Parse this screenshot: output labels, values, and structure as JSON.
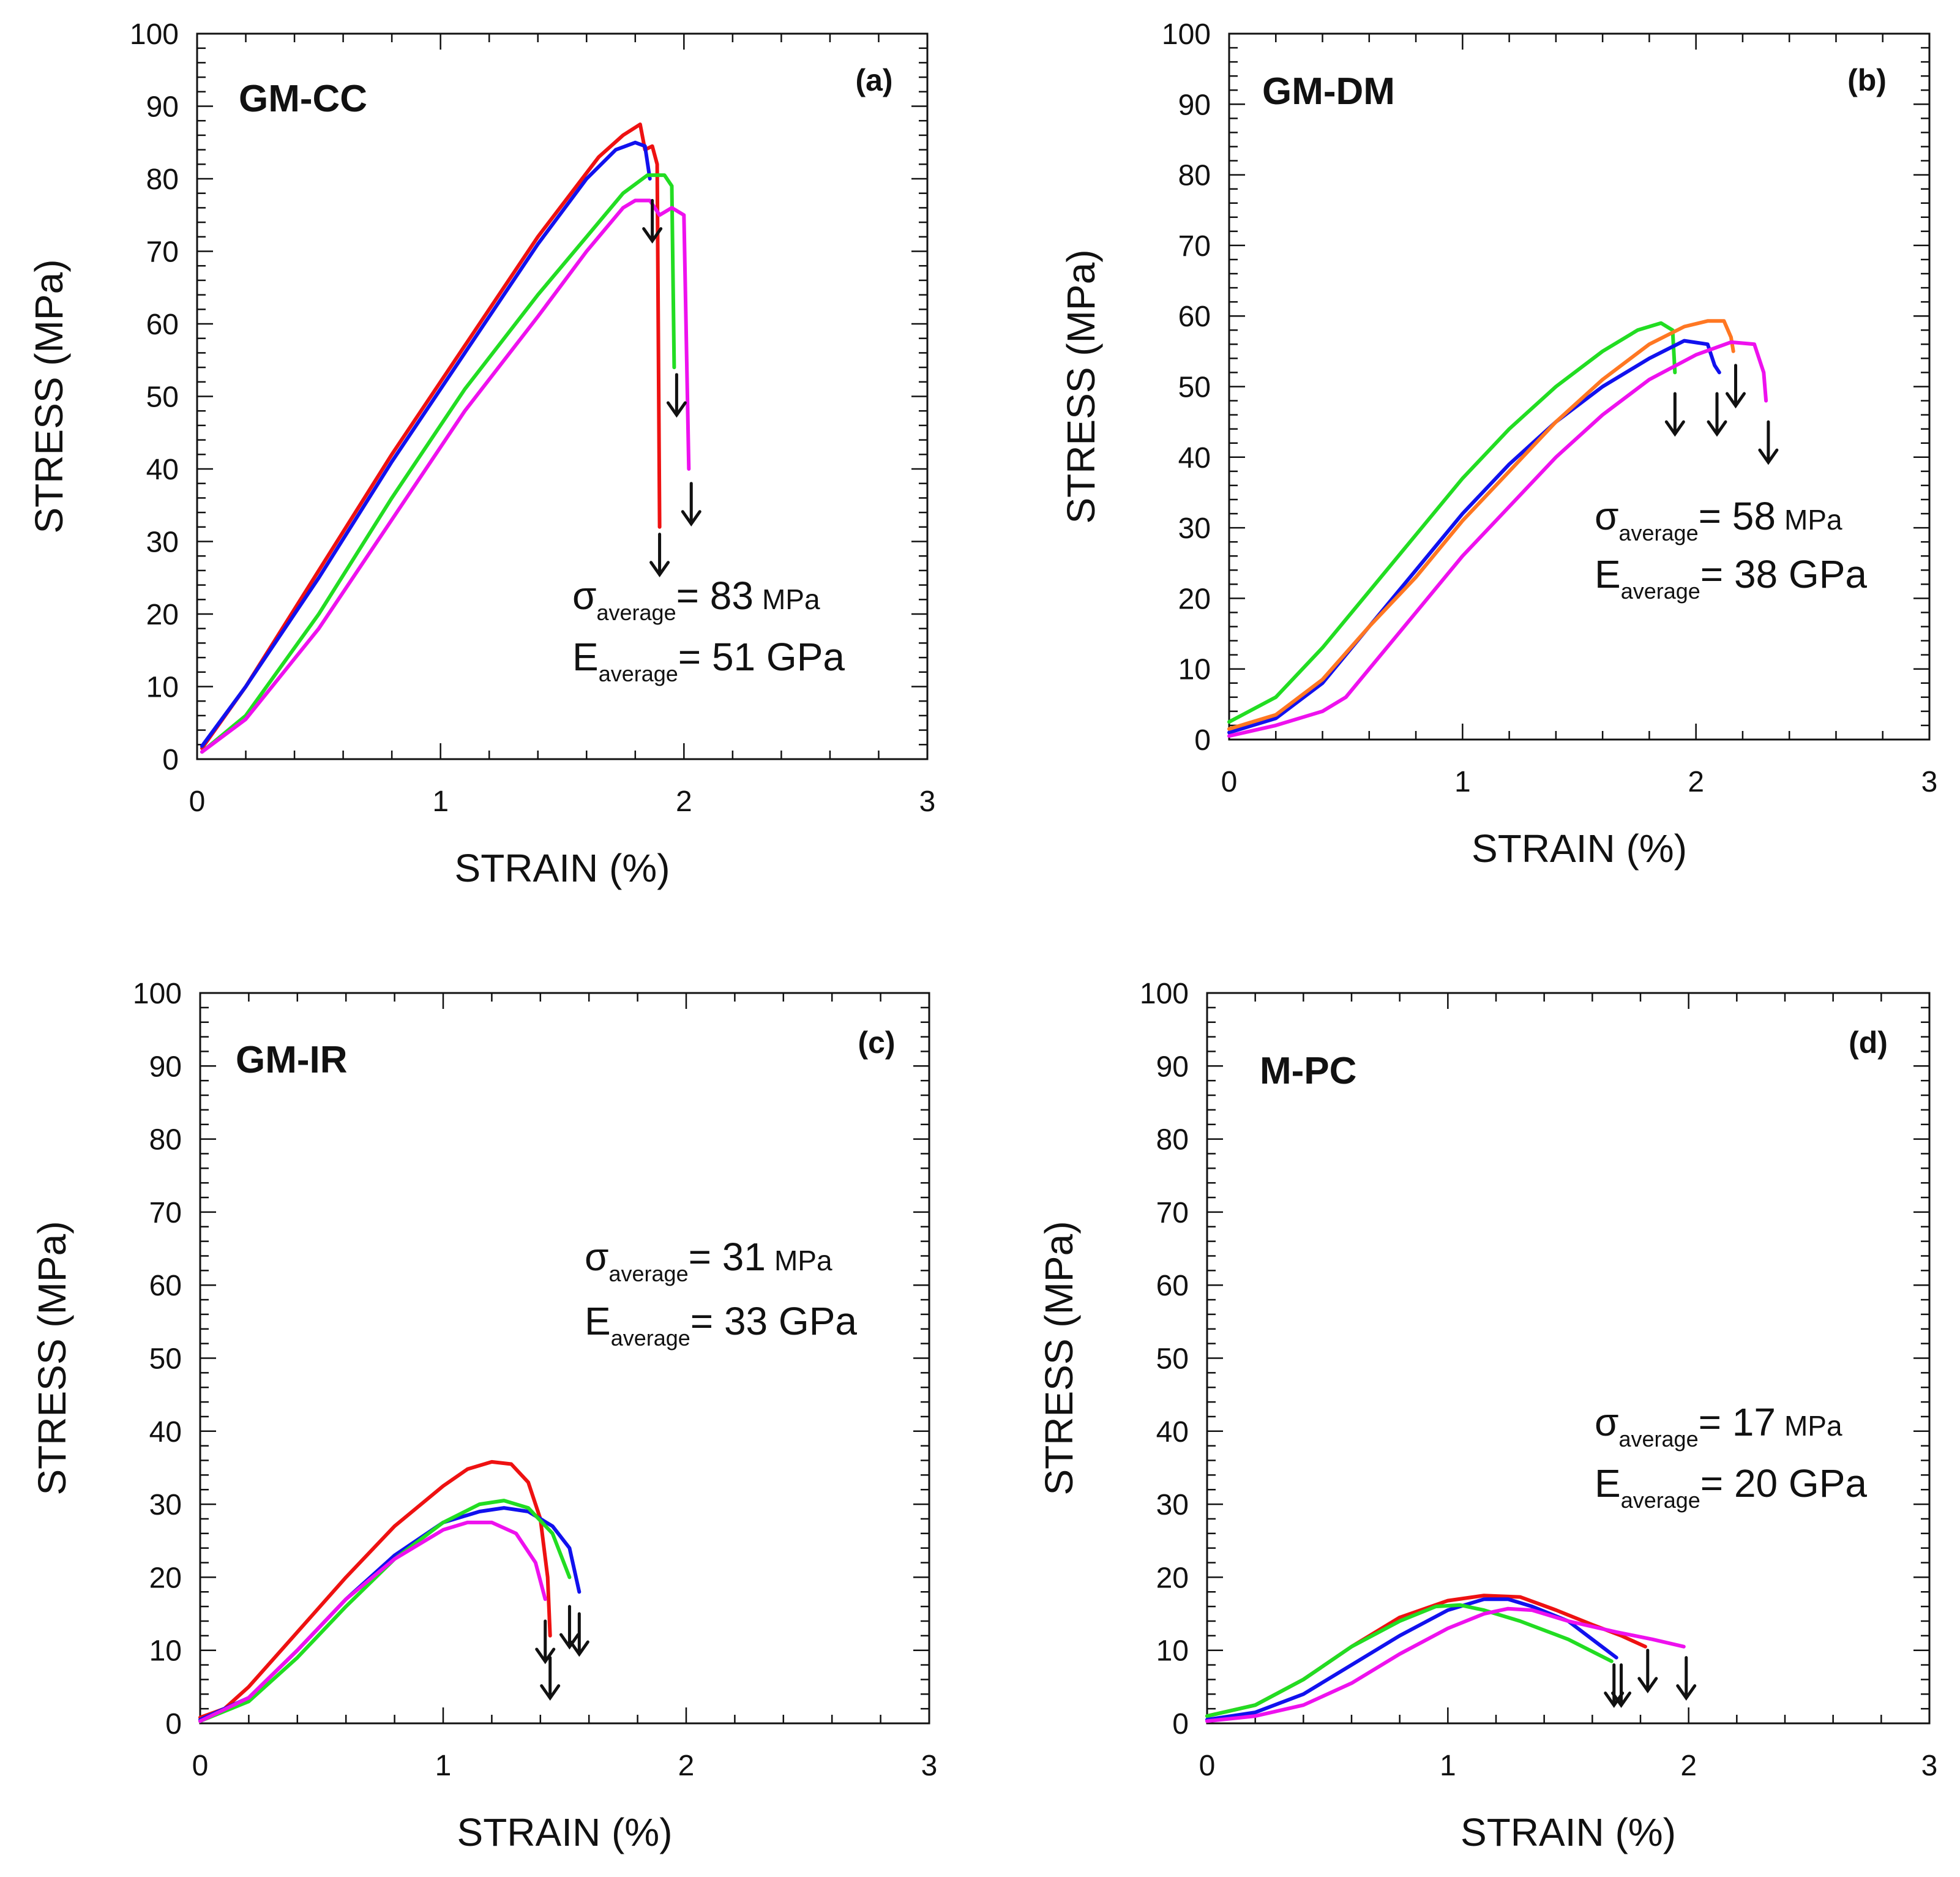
{
  "chart_data": [
    {
      "type": "line",
      "panel_label": "(a)",
      "title": "GM-CC",
      "xlabel": "STRAIN (%)",
      "ylabel": "STRESS (MPa)",
      "xlim": [
        0,
        3
      ],
      "ylim": [
        0,
        100
      ],
      "xticks": [
        "0",
        "1",
        "2",
        "3"
      ],
      "yticks": [
        "0",
        "10",
        "20",
        "30",
        "40",
        "50",
        "60",
        "70",
        "80",
        "90",
        "100"
      ],
      "annotation": {
        "sigma_symbol": "σ",
        "e_symbol": "E",
        "sub": "average",
        "sigma_value": "= 83",
        "sigma_unit": "MPa",
        "e_value": "= 51 GPa"
      },
      "series": [
        {
          "name": "specimen-red",
          "color": "#ee1111",
          "points": [
            [
              0.02,
              1.5
            ],
            [
              0.2,
              10
            ],
            [
              0.5,
              26
            ],
            [
              0.8,
              42
            ],
            [
              1.1,
              57
            ],
            [
              1.4,
              72
            ],
            [
              1.65,
              83
            ],
            [
              1.75,
              86
            ],
            [
              1.82,
              87.5
            ],
            [
              1.84,
              84
            ],
            [
              1.87,
              84.5
            ],
            [
              1.89,
              82
            ],
            [
              1.9,
              32
            ]
          ]
        },
        {
          "name": "specimen-blue",
          "color": "#1111ee",
          "points": [
            [
              0.02,
              1.8
            ],
            [
              0.2,
              10
            ],
            [
              0.5,
              25
            ],
            [
              0.8,
              41
            ],
            [
              1.1,
              56
            ],
            [
              1.4,
              71
            ],
            [
              1.6,
              80
            ],
            [
              1.72,
              84
            ],
            [
              1.8,
              85
            ],
            [
              1.84,
              84.5
            ],
            [
              1.86,
              80
            ]
          ]
        },
        {
          "name": "specimen-green",
          "color": "#22dd22",
          "points": [
            [
              0.02,
              1
            ],
            [
              0.2,
              6
            ],
            [
              0.5,
              20
            ],
            [
              0.8,
              36
            ],
            [
              1.1,
              51
            ],
            [
              1.4,
              64
            ],
            [
              1.6,
              72
            ],
            [
              1.75,
              78
            ],
            [
              1.85,
              80.5
            ],
            [
              1.92,
              80.5
            ],
            [
              1.95,
              79
            ],
            [
              1.96,
              54
            ]
          ]
        },
        {
          "name": "specimen-magenta",
          "color": "#ee11ee",
          "points": [
            [
              0.02,
              1
            ],
            [
              0.2,
              5.5
            ],
            [
              0.5,
              18
            ],
            [
              0.8,
              33
            ],
            [
              1.1,
              48
            ],
            [
              1.4,
              61
            ],
            [
              1.6,
              70
            ],
            [
              1.75,
              76
            ],
            [
              1.8,
              77
            ],
            [
              1.86,
              77
            ],
            [
              1.9,
              75
            ],
            [
              1.95,
              76
            ],
            [
              2.0,
              75
            ],
            [
              2.02,
              40
            ]
          ]
        }
      ],
      "failure_arrows": [
        {
          "x": 1.87,
          "y": 77
        },
        {
          "x": 1.97,
          "y": 53
        },
        {
          "x": 2.03,
          "y": 38
        },
        {
          "x": 1.9,
          "y": 31
        }
      ]
    },
    {
      "type": "line",
      "panel_label": "(b)",
      "title": "GM-DM",
      "xlabel": "STRAIN (%)",
      "ylabel": "STRESS (MPa)",
      "xlim": [
        0,
        3
      ],
      "ylim": [
        0,
        100
      ],
      "xticks": [
        "0",
        "1",
        "2",
        "3"
      ],
      "yticks": [
        "0",
        "10",
        "20",
        "30",
        "40",
        "50",
        "60",
        "70",
        "80",
        "90",
        "100"
      ],
      "annotation": {
        "sigma_symbol": "σ",
        "e_symbol": "E",
        "sub": "average",
        "sigma_value": "= 58",
        "sigma_unit": "MPa",
        "e_value": "= 38 GPa"
      },
      "series": [
        {
          "name": "specimen-green",
          "color": "#22dd22",
          "points": [
            [
              0,
              2.5
            ],
            [
              0.2,
              6
            ],
            [
              0.4,
              13
            ],
            [
              0.6,
              21
            ],
            [
              0.8,
              29
            ],
            [
              1.0,
              37
            ],
            [
              1.2,
              44
            ],
            [
              1.4,
              50
            ],
            [
              1.6,
              55
            ],
            [
              1.75,
              58
            ],
            [
              1.85,
              59
            ],
            [
              1.9,
              58
            ],
            [
              1.91,
              52
            ]
          ]
        },
        {
          "name": "specimen-blue",
          "color": "#1111ee",
          "points": [
            [
              0,
              1
            ],
            [
              0.2,
              3
            ],
            [
              0.4,
              8
            ],
            [
              0.6,
              16
            ],
            [
              0.8,
              24
            ],
            [
              1.0,
              32
            ],
            [
              1.2,
              39
            ],
            [
              1.4,
              45
            ],
            [
              1.6,
              50
            ],
            [
              1.8,
              54
            ],
            [
              1.95,
              56.5
            ],
            [
              2.05,
              56
            ],
            [
              2.08,
              53
            ],
            [
              2.1,
              52
            ]
          ]
        },
        {
          "name": "specimen-orange",
          "color": "#ff7722",
          "points": [
            [
              0,
              1.5
            ],
            [
              0.2,
              3.5
            ],
            [
              0.4,
              8.5
            ],
            [
              0.6,
              16
            ],
            [
              0.8,
              23
            ],
            [
              1.0,
              31
            ],
            [
              1.2,
              38
            ],
            [
              1.4,
              45
            ],
            [
              1.6,
              51
            ],
            [
              1.8,
              56
            ],
            [
              1.95,
              58.5
            ],
            [
              2.05,
              59.3
            ],
            [
              2.12,
              59.3
            ],
            [
              2.15,
              57
            ],
            [
              2.16,
              55
            ]
          ]
        },
        {
          "name": "specimen-magenta",
          "color": "#ee11ee",
          "points": [
            [
              0,
              0.5
            ],
            [
              0.2,
              2
            ],
            [
              0.4,
              4
            ],
            [
              0.5,
              6
            ],
            [
              0.6,
              10
            ],
            [
              0.8,
              18
            ],
            [
              1.0,
              26
            ],
            [
              1.2,
              33
            ],
            [
              1.4,
              40
            ],
            [
              1.6,
              46
            ],
            [
              1.8,
              51
            ],
            [
              2.0,
              54.5
            ],
            [
              2.15,
              56.3
            ],
            [
              2.25,
              56
            ],
            [
              2.29,
              52
            ],
            [
              2.3,
              48
            ]
          ]
        }
      ],
      "failure_arrows": [
        {
          "x": 1.91,
          "y": 49
        },
        {
          "x": 2.09,
          "y": 49
        },
        {
          "x": 2.17,
          "y": 53
        },
        {
          "x": 2.31,
          "y": 45
        }
      ]
    },
    {
      "type": "line",
      "panel_label": "(c)",
      "title": "GM-IR",
      "xlabel": "STRAIN (%)",
      "ylabel": "STRESS (MPa)",
      "xlim": [
        0,
        3
      ],
      "ylim": [
        0,
        100
      ],
      "xticks": [
        "0",
        "1",
        "2",
        "3"
      ],
      "yticks": [
        "0",
        "10",
        "20",
        "30",
        "40",
        "50",
        "60",
        "70",
        "80",
        "90",
        "100"
      ],
      "annotation": {
        "sigma_symbol": "σ",
        "e_symbol": "E",
        "sub": "average",
        "sigma_value": "= 31",
        "sigma_unit": "MPa",
        "e_value": "= 33 GPa"
      },
      "series": [
        {
          "name": "specimen-red",
          "color": "#ee1111",
          "points": [
            [
              0,
              0.8
            ],
            [
              0.1,
              2
            ],
            [
              0.2,
              5
            ],
            [
              0.4,
              12.5
            ],
            [
              0.6,
              20
            ],
            [
              0.8,
              27
            ],
            [
              1.0,
              32.5
            ],
            [
              1.1,
              34.8
            ],
            [
              1.2,
              35.8
            ],
            [
              1.28,
              35.5
            ],
            [
              1.35,
              33
            ],
            [
              1.4,
              28
            ],
            [
              1.43,
              20
            ],
            [
              1.44,
              12
            ]
          ]
        },
        {
          "name": "specimen-blue",
          "color": "#1111ee",
          "points": [
            [
              0,
              0.5
            ],
            [
              0.2,
              3.5
            ],
            [
              0.4,
              10
            ],
            [
              0.6,
              17
            ],
            [
              0.8,
              23
            ],
            [
              1.0,
              27.5
            ],
            [
              1.15,
              29
            ],
            [
              1.25,
              29.5
            ],
            [
              1.35,
              29
            ],
            [
              1.45,
              27
            ],
            [
              1.52,
              24
            ],
            [
              1.56,
              18
            ]
          ]
        },
        {
          "name": "specimen-green",
          "color": "#22dd22",
          "points": [
            [
              0,
              0.3
            ],
            [
              0.2,
              3
            ],
            [
              0.4,
              9
            ],
            [
              0.6,
              16
            ],
            [
              0.8,
              22.5
            ],
            [
              1.0,
              27.5
            ],
            [
              1.15,
              30
            ],
            [
              1.25,
              30.5
            ],
            [
              1.35,
              29.5
            ],
            [
              1.45,
              26
            ],
            [
              1.52,
              20
            ]
          ]
        },
        {
          "name": "specimen-magenta",
          "color": "#ee11ee",
          "points": [
            [
              0,
              0.3
            ],
            [
              0.2,
              3.5
            ],
            [
              0.4,
              10
            ],
            [
              0.6,
              17
            ],
            [
              0.8,
              22.5
            ],
            [
              1.0,
              26.5
            ],
            [
              1.1,
              27.5
            ],
            [
              1.2,
              27.5
            ],
            [
              1.3,
              26
            ],
            [
              1.38,
              22
            ],
            [
              1.42,
              17
            ]
          ]
        }
      ],
      "failure_arrows": [
        {
          "x": 1.42,
          "y": 14
        },
        {
          "x": 1.52,
          "y": 16
        },
        {
          "x": 1.56,
          "y": 15
        },
        {
          "x": 1.44,
          "y": 9
        }
      ]
    },
    {
      "type": "line",
      "panel_label": "(d)",
      "title": "M-PC",
      "xlabel": "STRAIN (%)",
      "ylabel": "STRESS (MPa)",
      "xlim": [
        0,
        3
      ],
      "ylim": [
        0,
        100
      ],
      "xticks": [
        "0",
        "1",
        "2",
        "3"
      ],
      "yticks": [
        "0",
        "10",
        "20",
        "30",
        "40",
        "50",
        "60",
        "70",
        "80",
        "90",
        "100"
      ],
      "annotation": {
        "sigma_symbol": "σ",
        "e_symbol": "E",
        "sub": "average",
        "sigma_value": "= 17",
        "sigma_unit": "MPa",
        "e_value": "= 20 GPa"
      },
      "series": [
        {
          "name": "specimen-red",
          "color": "#ee1111",
          "points": [
            [
              0,
              1
            ],
            [
              0.2,
              2.5
            ],
            [
              0.4,
              6
            ],
            [
              0.6,
              10.5
            ],
            [
              0.8,
              14.5
            ],
            [
              1.0,
              16.8
            ],
            [
              1.15,
              17.5
            ],
            [
              1.3,
              17.3
            ],
            [
              1.45,
              15.5
            ],
            [
              1.6,
              13.5
            ],
            [
              1.72,
              12
            ],
            [
              1.82,
              10.5
            ]
          ]
        },
        {
          "name": "specimen-blue",
          "color": "#1111ee",
          "points": [
            [
              0,
              0.5
            ],
            [
              0.2,
              1.5
            ],
            [
              0.4,
              4
            ],
            [
              0.6,
              8
            ],
            [
              0.8,
              12
            ],
            [
              1.0,
              15.5
            ],
            [
              1.15,
              17
            ],
            [
              1.25,
              17
            ],
            [
              1.35,
              16
            ],
            [
              1.5,
              14
            ],
            [
              1.62,
              11
            ],
            [
              1.7,
              9
            ]
          ]
        },
        {
          "name": "specimen-green",
          "color": "#22dd22",
          "points": [
            [
              0,
              1
            ],
            [
              0.2,
              2.5
            ],
            [
              0.4,
              6
            ],
            [
              0.6,
              10.5
            ],
            [
              0.8,
              14
            ],
            [
              0.95,
              16
            ],
            [
              1.05,
              16.2
            ],
            [
              1.15,
              15.5
            ],
            [
              1.3,
              14
            ],
            [
              1.5,
              11.5
            ],
            [
              1.68,
              8.5
            ]
          ]
        },
        {
          "name": "specimen-magenta",
          "color": "#ee11ee",
          "points": [
            [
              0,
              0.3
            ],
            [
              0.2,
              1
            ],
            [
              0.4,
              2.5
            ],
            [
              0.6,
              5.5
            ],
            [
              0.8,
              9.5
            ],
            [
              1.0,
              13
            ],
            [
              1.15,
              15
            ],
            [
              1.25,
              15.7
            ],
            [
              1.35,
              15.5
            ],
            [
              1.5,
              14
            ],
            [
              1.7,
              12.5
            ],
            [
              1.85,
              11.5
            ],
            [
              1.98,
              10.5
            ]
          ]
        }
      ],
      "failure_arrows": [
        {
          "x": 1.69,
          "y": 8
        },
        {
          "x": 1.72,
          "y": 8
        },
        {
          "x": 1.83,
          "y": 10
        },
        {
          "x": 1.99,
          "y": 9
        }
      ]
    }
  ]
}
